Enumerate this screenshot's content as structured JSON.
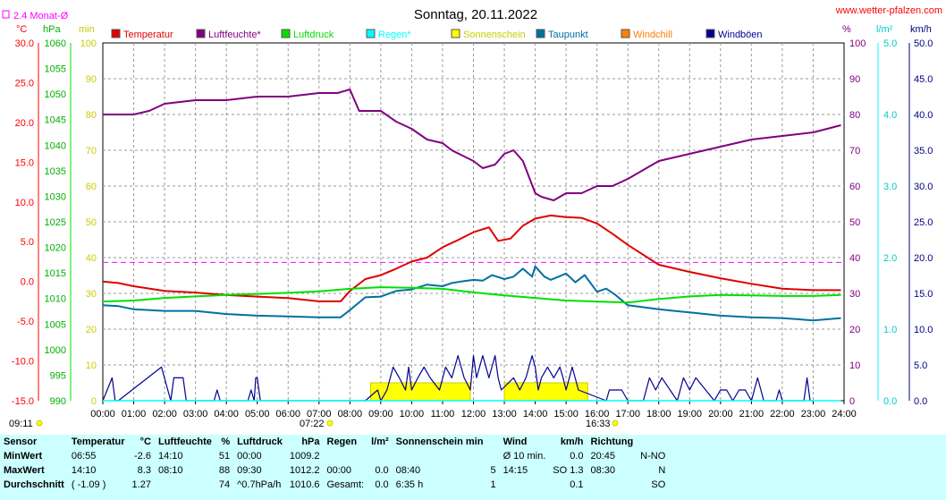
{
  "title": "Sonntag, 20.11.2022",
  "site": "www.wetter-pfalzen.com",
  "avg_label": "2.4 Monat-Ø",
  "units_left": [
    "°C",
    "hPa",
    "min"
  ],
  "units_right": [
    "%",
    "l/m²",
    "km/h"
  ],
  "time_markers": {
    "left": "09:11",
    "sunrise": "07:22",
    "sunset": "16:33"
  },
  "colors": {
    "temperature": "#e00000",
    "humidity": "#800080",
    "pressure": "#00e000",
    "rain": "#00ffff",
    "sunshine": "#ffff00",
    "dewpoint": "#0070a0",
    "windchill": "#ff8000",
    "gusts": "#000090",
    "average": "#ff00ff"
  },
  "legend": [
    {
      "label": "Temperatur",
      "color": "#e00000"
    },
    {
      "label": "Luftfeuchte*",
      "color": "#800080"
    },
    {
      "label": "Luftdruck",
      "color": "#00e000"
    },
    {
      "label": "Regen*",
      "color": "#00ffff"
    },
    {
      "label": "Sonnenschein",
      "color": "#ffff00"
    },
    {
      "label": "Taupunkt",
      "color": "#0070a0"
    },
    {
      "label": "Windchill",
      "color": "#ff8000"
    },
    {
      "label": "Windböen",
      "color": "#000090"
    }
  ],
  "chart_data": {
    "type": "line",
    "x_ticks": [
      "00:00",
      "01:00",
      "02:00",
      "03:00",
      "04:00",
      "05:00",
      "06:00",
      "07:00",
      "08:00",
      "09:00",
      "10:00",
      "11:00",
      "12:00",
      "13:00",
      "14:00",
      "15:00",
      "16:00",
      "17:00",
      "18:00",
      "19:00",
      "20:00",
      "21:00",
      "22:00",
      "23:00",
      "24:00"
    ],
    "grid": true,
    "axes": {
      "temperature": {
        "unit": "°C",
        "range": [
          -15,
          30
        ],
        "ticks": [
          "30.0",
          "25.0",
          "20.0",
          "15.0",
          "10.0",
          "5.0",
          "0.0",
          "-5.0",
          "-10.0",
          "-15.0"
        ],
        "color": "#ff0000"
      },
      "pressure": {
        "unit": "hPa",
        "range": [
          990,
          1060
        ],
        "ticks": [
          "1060",
          "1055",
          "1050",
          "1045",
          "1040",
          "1035",
          "1030",
          "1025",
          "1020",
          "1015",
          "1010",
          "1005",
          "1000",
          "995",
          "990"
        ],
        "color": "#00b000"
      },
      "minutes": {
        "unit": "min",
        "range": [
          0,
          100
        ],
        "ticks": [
          "100",
          "90",
          "80",
          "70",
          "60",
          "50",
          "40",
          "30",
          "20",
          "10",
          "0"
        ],
        "color": "#cccc00"
      },
      "humidity": {
        "unit": "%",
        "range": [
          0,
          100
        ],
        "ticks": [
          "100",
          "90",
          "80",
          "70",
          "60",
          "50",
          "40",
          "30",
          "20",
          "10",
          "0"
        ],
        "color": "#800080"
      },
      "rain": {
        "unit": "l/m²",
        "range": [
          0,
          5
        ],
        "ticks": [
          "5.0",
          "4.0",
          "3.0",
          "2.0",
          "1.0",
          "0.0"
        ],
        "color": "#00cccc"
      },
      "wind": {
        "unit": "km/h",
        "range": [
          0,
          50
        ],
        "ticks": [
          "50.0",
          "45.0",
          "40.0",
          "35.0",
          "30.0",
          "25.0",
          "20.0",
          "15.0",
          "10.0",
          "5.0",
          "0.0"
        ],
        "color": "#000080"
      }
    },
    "month_average_temperature": 2.4,
    "series": [
      {
        "name": "Luftfeuchte*",
        "axis": "humidity",
        "color": "#800080",
        "x": [
          0,
          1,
          1.5,
          2,
          3,
          4,
          5,
          6,
          7,
          7.6,
          8,
          8.3,
          9,
          9.5,
          10,
          10.5,
          11,
          11.3,
          12,
          12.3,
          12.7,
          13,
          13.3,
          13.6,
          14,
          14.2,
          14.6,
          15,
          15.5,
          16,
          16.5,
          17,
          18,
          19,
          20,
          21,
          22,
          23,
          23.9
        ],
        "y": [
          80,
          80,
          81,
          83,
          84,
          84,
          85,
          85,
          86,
          86,
          87,
          81,
          81,
          78,
          76,
          73,
          72,
          70,
          67,
          65,
          66,
          69,
          70,
          67,
          58,
          57,
          56,
          58,
          58,
          60,
          60,
          62,
          67,
          69,
          71,
          73,
          74,
          75,
          77
        ]
      },
      {
        "name": "Temperatur",
        "axis": "temperature",
        "color": "#e00000",
        "x": [
          0,
          0.5,
          1,
          2,
          3,
          4,
          5,
          6,
          7,
          7.7,
          8,
          8.5,
          9,
          9.5,
          10,
          10.5,
          11,
          11.5,
          12,
          12.5,
          12.8,
          13.2,
          13.6,
          14,
          14.5,
          15,
          15.5,
          16,
          16.5,
          17,
          18,
          19,
          20,
          21,
          22,
          23,
          23.9
        ],
        "y": [
          0,
          -0.2,
          -0.6,
          -1.2,
          -1.4,
          -1.7,
          -1.9,
          -2.1,
          -2.5,
          -2.5,
          -1.2,
          0.3,
          0.8,
          1.6,
          2.5,
          3.0,
          4.3,
          5.2,
          6.2,
          6.8,
          5.1,
          5.4,
          7.0,
          7.9,
          8.3,
          8.1,
          8.0,
          7.3,
          6.0,
          4.6,
          2.1,
          1.2,
          0.4,
          -0.3,
          -0.9,
          -1.1,
          -1.1
        ]
      },
      {
        "name": "Taupunkt",
        "axis": "temperature",
        "color": "#0070a0",
        "x": [
          0,
          0.5,
          1,
          2,
          3,
          4,
          5,
          6,
          7,
          7.7,
          8,
          8.5,
          9,
          9.5,
          10,
          10.5,
          11,
          11.3,
          11.6,
          12,
          12.3,
          12.6,
          13,
          13.3,
          13.6,
          13.9,
          14,
          14.3,
          14.5,
          15,
          15.3,
          15.6,
          16,
          16.3,
          16.6,
          17,
          18,
          19,
          20,
          21,
          22,
          23,
          23.9
        ],
        "y": [
          -3.0,
          -3.1,
          -3.5,
          -3.7,
          -3.7,
          -4.1,
          -4.3,
          -4.4,
          -4.5,
          -4.5,
          -3.6,
          -2.0,
          -1.9,
          -1.2,
          -1.0,
          -0.4,
          -0.6,
          -0.2,
          0.0,
          0.2,
          0.1,
          0.8,
          0.3,
          0.6,
          1.6,
          0.6,
          1.9,
          0.6,
          0.2,
          1.0,
          -0.1,
          0.8,
          -1.3,
          -0.9,
          -1.7,
          -3.0,
          -3.5,
          -3.9,
          -4.3,
          -4.5,
          -4.6,
          -4.9,
          -4.6
        ]
      },
      {
        "name": "Luftdruck",
        "axis": "pressure",
        "color": "#00e000",
        "x": [
          0,
          1,
          2,
          3,
          4,
          5,
          6,
          7,
          8,
          9,
          10,
          11,
          12,
          13,
          14,
          15,
          16,
          17,
          18,
          19,
          20,
          21,
          22,
          23,
          23.9
        ],
        "y": [
          1009.4,
          1009.6,
          1010.1,
          1010.4,
          1010.7,
          1010.9,
          1011.1,
          1011.4,
          1011.9,
          1012.2,
          1012.1,
          1011.9,
          1011.2,
          1010.6,
          1010.1,
          1009.6,
          1009.4,
          1009.2,
          1009.9,
          1010.4,
          1010.7,
          1010.6,
          1010.5,
          1010.5,
          1010.7
        ]
      },
      {
        "name": "Windböen",
        "axis": "wind",
        "color": "#000090",
        "x": [
          0,
          0.3,
          0.4,
          0.5,
          1.9,
          2.2,
          2.3,
          2.6,
          2.7,
          3.6,
          3.7,
          3.8,
          4.7,
          4.8,
          4.9,
          4.95,
          5.0,
          5.1,
          8.5,
          8.9,
          9.0,
          9.2,
          9.4,
          9.6,
          9.8,
          9.9,
          10.0,
          10.2,
          10.4,
          10.6,
          10.9,
          11.1,
          11.3,
          11.5,
          11.7,
          11.9,
          12.0,
          12.1,
          12.3,
          12.5,
          12.7,
          12.8,
          12.9,
          13.3,
          13.5,
          13.7,
          13.9,
          14.0,
          14.1,
          14.2,
          14.4,
          14.6,
          14.8,
          14.9,
          15.0,
          15.2,
          15.4,
          16.3,
          16.4,
          16.8,
          17.0,
          17.5,
          17.7,
          17.9,
          18.1,
          18.6,
          18.8,
          19.0,
          19.2,
          19.8,
          20.0,
          20.2,
          20.4,
          20.6,
          20.8,
          21.0,
          21.2,
          21.4,
          21.8,
          21.9,
          22.0,
          22.7,
          22.8,
          22.9,
          23.0
        ],
        "y": [
          0,
          3.2,
          0,
          0,
          4.7,
          0,
          3.2,
          3.2,
          0,
          0,
          1.5,
          0,
          0,
          1.5,
          0,
          3.2,
          3.2,
          0,
          0,
          1.5,
          0,
          1.5,
          4.7,
          3.2,
          1.5,
          4.7,
          1.5,
          3.2,
          4.7,
          3.2,
          1.5,
          4.7,
          3.2,
          6.3,
          3.2,
          1.5,
          6.3,
          3.2,
          6.3,
          3.2,
          6.3,
          3.2,
          1.5,
          3.2,
          1.5,
          3.2,
          6.3,
          4.7,
          1.5,
          3.2,
          4.7,
          3.2,
          4.7,
          3.2,
          1.5,
          4.7,
          1.5,
          0,
          1.5,
          1.5,
          0,
          0,
          3.2,
          1.5,
          3.2,
          0,
          3.2,
          1.5,
          3.2,
          0,
          1.5,
          1.5,
          0,
          1.5,
          1.5,
          0,
          3.2,
          0,
          0,
          1.5,
          0,
          0,
          3.2,
          0,
          0
        ]
      },
      {
        "name": "Regen*",
        "axis": "rain",
        "color": "#00ffff",
        "x": [
          0,
          23.9
        ],
        "y": [
          0,
          0
        ]
      }
    ],
    "sunshine": {
      "name": "Sonnenschein",
      "axis": "minutes",
      "color": "#ffff00",
      "bars": [
        {
          "start": 8.67,
          "end": 11.9,
          "value": 5
        },
        {
          "start": 13.0,
          "end": 15.7,
          "value": 5
        }
      ]
    }
  },
  "stats": {
    "headers": [
      {
        "text": "Sensor",
        "unit": ""
      },
      {
        "text": "Temperatur",
        "unit": "°C"
      },
      {
        "text": "Luftfeuchte",
        "unit": "%"
      },
      {
        "text": "Luftdruck",
        "unit": "hPa"
      },
      {
        "text": "Regen",
        "unit": "l/m²"
      },
      {
        "text": "Sonnenschein min",
        "unit": ""
      },
      {
        "text": "Wind",
        "unit": "km/h"
      },
      {
        "text": "Richtung",
        "unit": ""
      }
    ],
    "rows": [
      {
        "label": "MinWert",
        "cells": [
          "06:55",
          "-2.6",
          "14:10",
          "51",
          "00:00",
          "1009.2",
          "",
          "",
          "",
          "",
          "Ø 10 min.",
          "0.0",
          "20:45",
          "N-NO"
        ]
      },
      {
        "label": "MaxWert",
        "cells": [
          "14:10",
          "8.3",
          "08:10",
          "88",
          "09:30",
          "1012.2",
          "00:00",
          "0.0",
          "08:40",
          "5",
          "14:15",
          "SO 1.3",
          "08:30",
          "N"
        ]
      },
      {
        "label": "Durchschnitt",
        "cells": [
          "( -1.09 )",
          "1.27",
          "",
          "74",
          "^0.7hPa/h",
          "1010.6",
          "Gesamt:",
          "0.0",
          "6:35 h",
          "1",
          "",
          "0.1",
          "",
          "SO"
        ]
      }
    ]
  }
}
